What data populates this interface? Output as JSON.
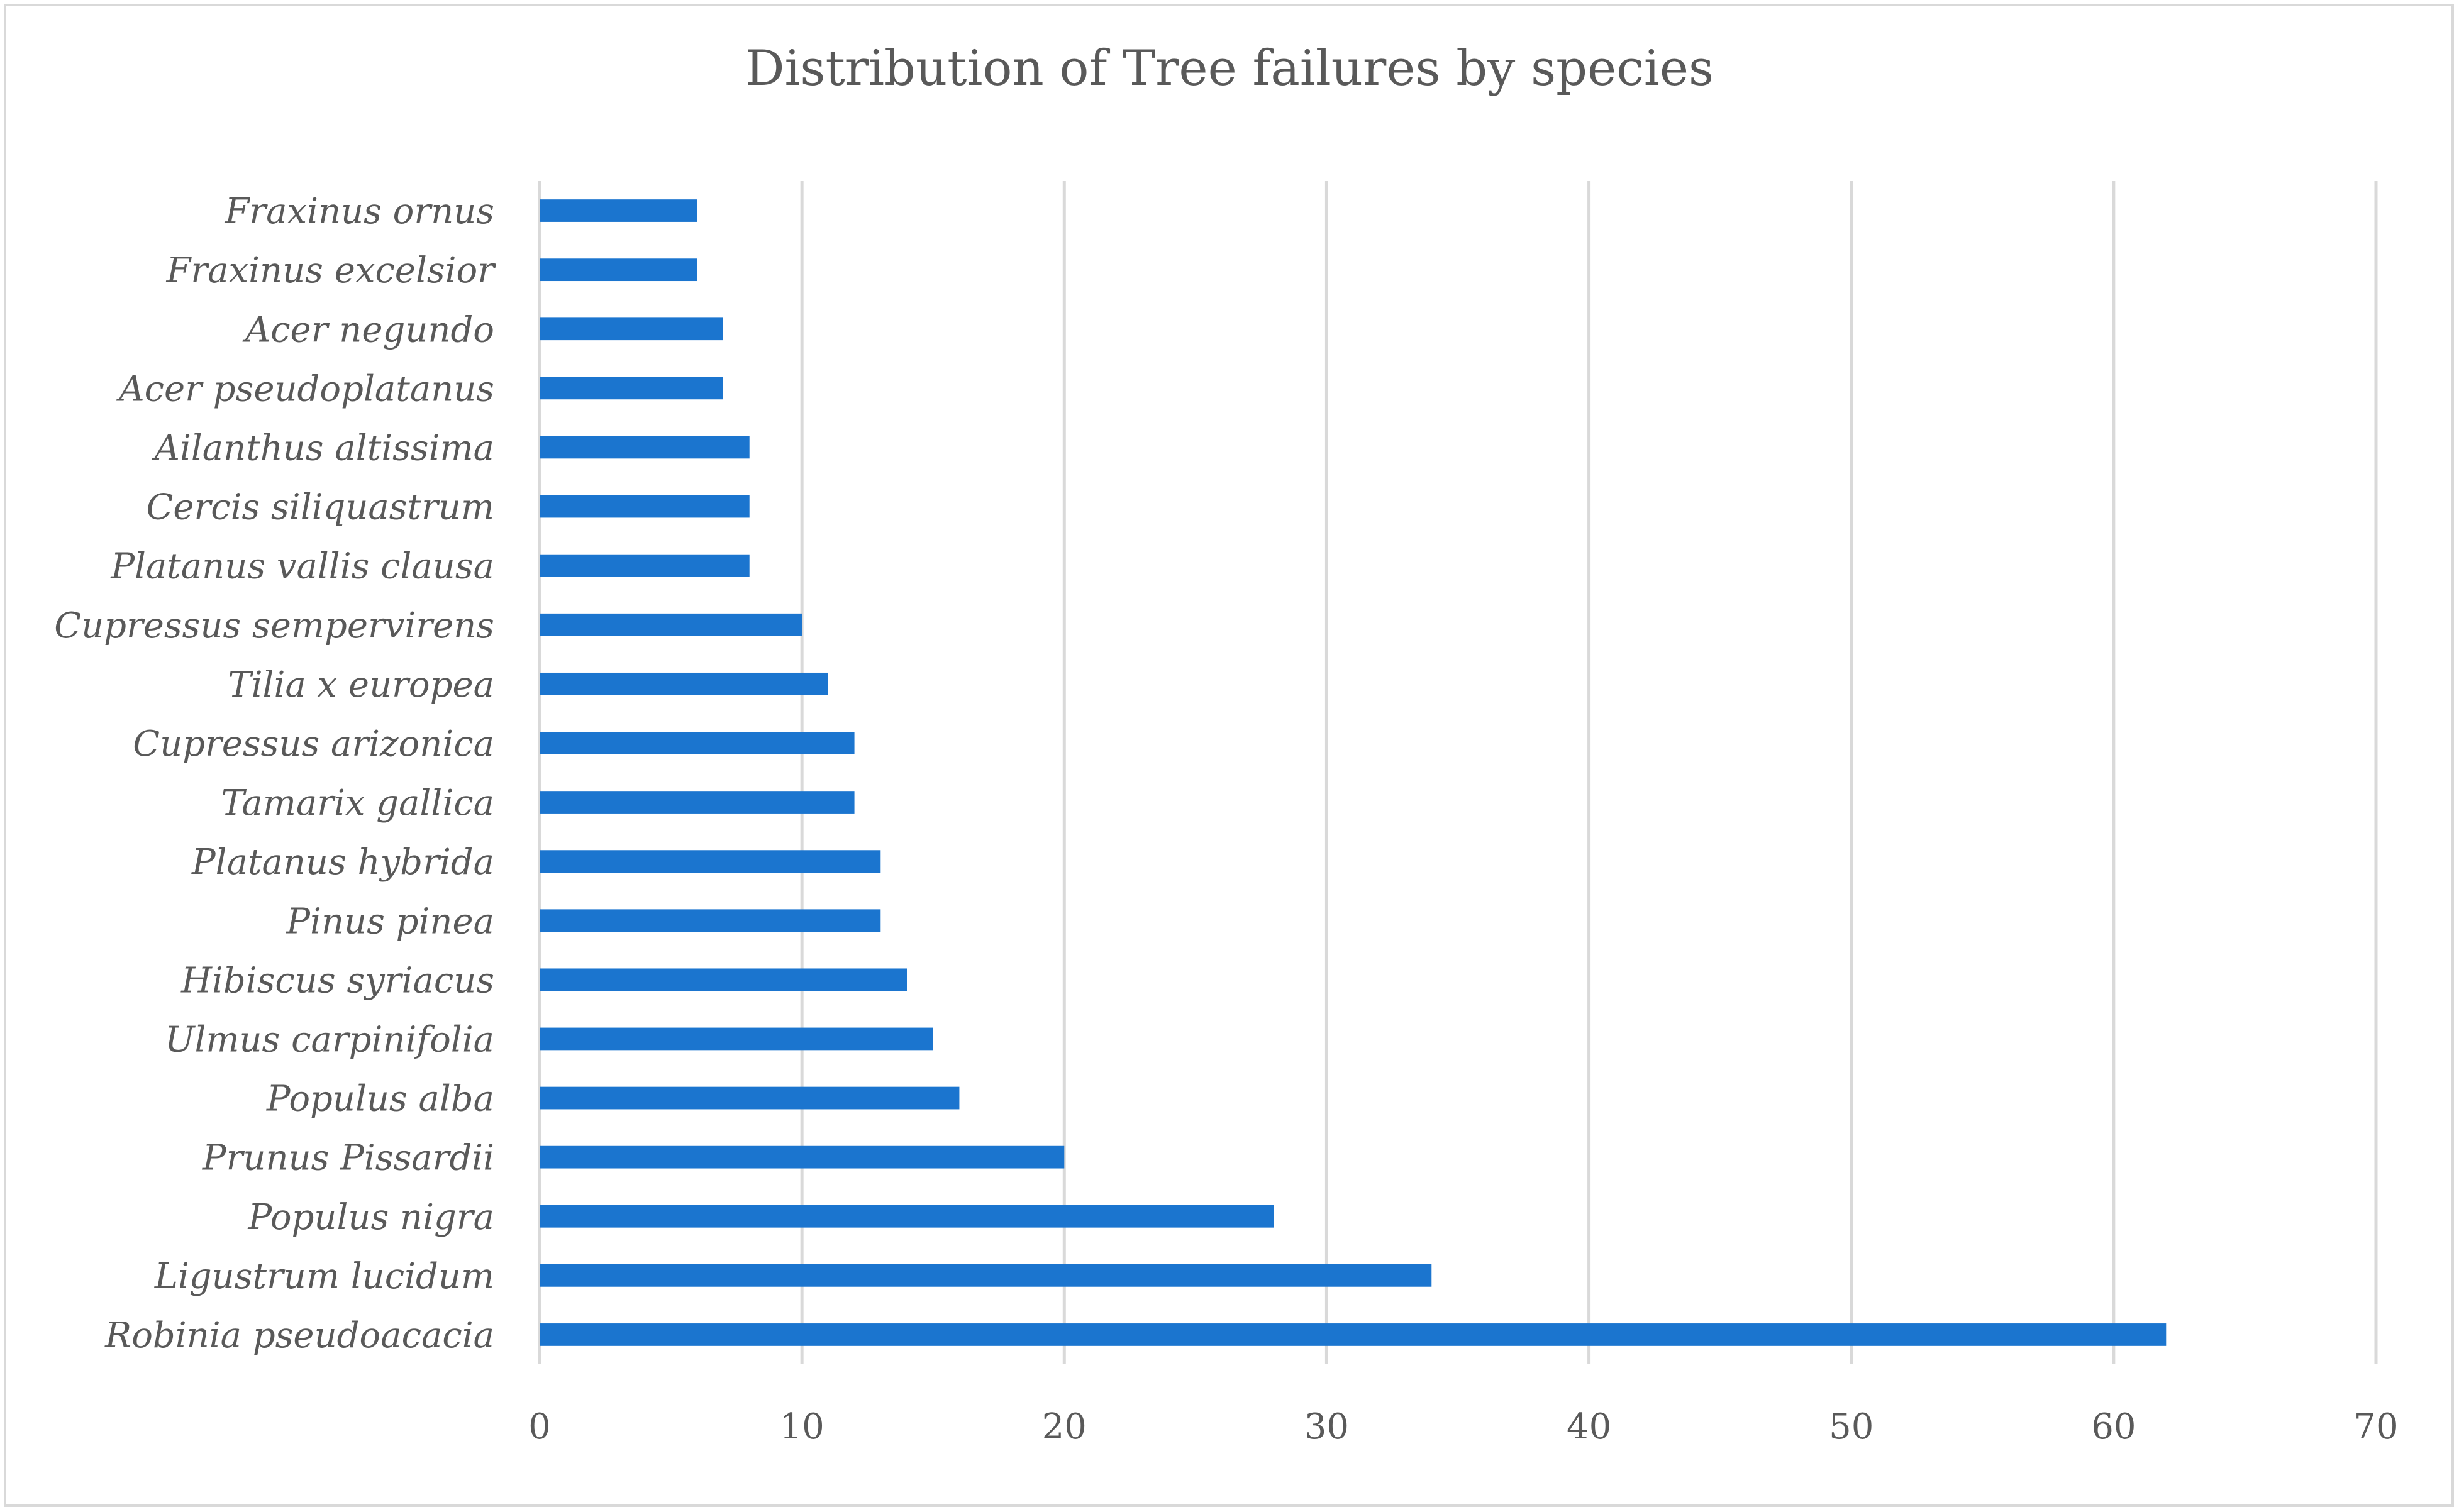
{
  "chart_data": {
    "type": "bar",
    "orientation": "horizontal",
    "title": "Distribution of Tree failures by species",
    "xlabel": "",
    "ylabel": "",
    "xlim": [
      0,
      70
    ],
    "x_ticks": [
      0,
      10,
      20,
      30,
      40,
      50,
      60,
      70
    ],
    "grid": "vertical",
    "legend": "none",
    "bar_color": "#1b75cf",
    "categories": [
      "Robinia pseudoacacia",
      "Ligustrum lucidum",
      "Populus nigra",
      "Prunus Pissardii",
      "Populus alba",
      "Ulmus carpinifolia",
      "Hibiscus syriacus",
      "Pinus pinea",
      "Platanus hybrida",
      "Tamarix gallica",
      "Cupressus arizonica",
      "Tilia x europea",
      "Cupressus sempervirens",
      "Platanus vallis clausa",
      "Cercis siliquastrum",
      "Ailanthus altissima",
      "Acer pseudoplatanus",
      "Acer negundo",
      "Fraxinus excelsior",
      "Fraxinus ornus"
    ],
    "values": [
      62,
      34,
      28,
      20,
      16,
      15,
      14,
      13,
      13,
      12,
      12,
      11,
      10,
      8,
      8,
      8,
      7,
      7,
      6,
      6
    ]
  }
}
